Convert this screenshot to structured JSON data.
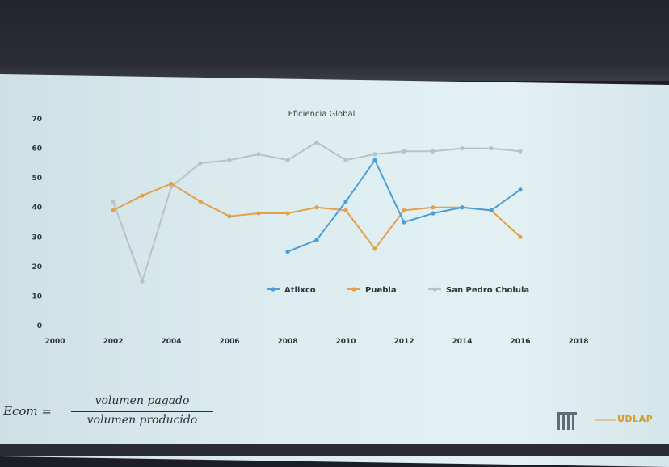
{
  "chart_data": {
    "type": "line",
    "title": "Eficiencia Global",
    "xlabel": "",
    "ylabel": "",
    "xlim": [
      2000,
      2018
    ],
    "ylim": [
      0,
      70
    ],
    "xticks": [
      "2000",
      "2002",
      "2004",
      "2006",
      "2008",
      "2010",
      "2012",
      "2014",
      "2016",
      "2018"
    ],
    "yticks": [
      "0",
      "10",
      "20",
      "30",
      "40",
      "50",
      "60",
      "70"
    ],
    "grid": false,
    "legend_position": "bottom-center",
    "series": [
      {
        "name": "Atlixco",
        "color": "#4b9fd8",
        "x": [
          2008,
          2009,
          2010,
          2011,
          2012,
          2013,
          2014,
          2015,
          2016
        ],
        "y": [
          25,
          29,
          42,
          56,
          35,
          38,
          40,
          39,
          46
        ]
      },
      {
        "name": "Puebla",
        "color": "#e3a04a",
        "x": [
          2002,
          2003,
          2004,
          2005,
          2006,
          2007,
          2008,
          2009,
          2010,
          2011,
          2012,
          2013,
          2014,
          2015,
          2016
        ],
        "y": [
          39,
          44,
          48,
          42,
          37,
          38,
          38,
          40,
          39,
          26,
          39,
          40,
          40,
          39,
          30
        ]
      },
      {
        "name": "San Pedro Cholula",
        "color": "#b7c2c6",
        "x": [
          2002,
          2003,
          2004,
          2005,
          2006,
          2007,
          2008,
          2009,
          2010,
          2011,
          2012,
          2013,
          2014,
          2015,
          2016
        ],
        "y": [
          42,
          15,
          47,
          55,
          56,
          58,
          56,
          62,
          56,
          58,
          59,
          59,
          60,
          60,
          59
        ]
      }
    ]
  },
  "formula": {
    "lhs": "Ecom =",
    "numerator": "volumen pagado",
    "denominator": "volumen producido"
  },
  "logos": {
    "udlap": "UDLAP"
  }
}
